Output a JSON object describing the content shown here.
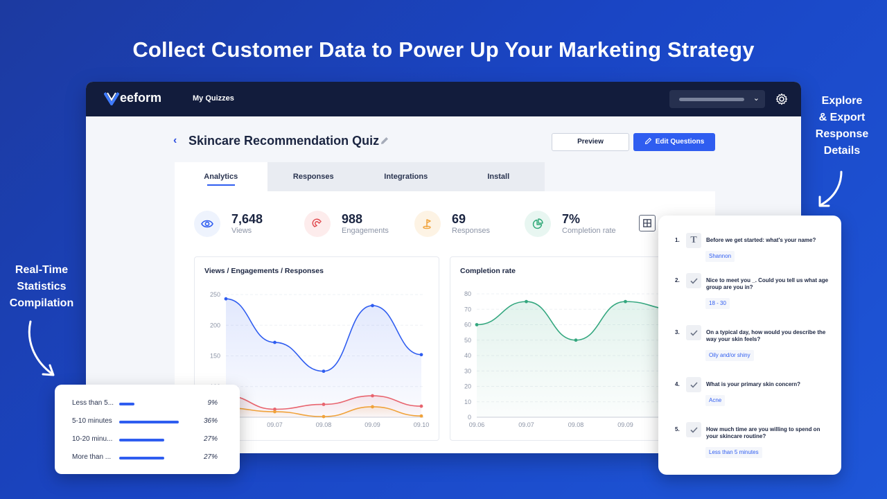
{
  "headline": "Collect Customer Data to Power Up Your Marketing Strategy",
  "side_labels": {
    "left": [
      "Real-Time",
      "Statistics",
      "Compilation"
    ],
    "right": [
      "Explore",
      "& Export",
      "Response",
      "Details"
    ]
  },
  "app": {
    "brand": "eeform",
    "nav": {
      "my_quizzes": "My Quizzes"
    },
    "quiz_title": "Skincare Recommendation Quiz",
    "buttons": {
      "preview": "Preview",
      "edit_questions": "Edit Questions"
    },
    "tabs": [
      "Analytics",
      "Responses",
      "Integrations",
      "Install"
    ],
    "stats": [
      {
        "value": "7,648",
        "label": "Views",
        "icon": "eye-icon",
        "bg": "#eef3fd",
        "color": "#2f5df0"
      },
      {
        "value": "988",
        "label": "Engagements",
        "icon": "magnet-icon",
        "bg": "#fdecec",
        "color": "#e0474c"
      },
      {
        "value": "69",
        "label": "Responses",
        "icon": "golf-flag-icon",
        "bg": "#fdf3e4",
        "color": "#f0a23a"
      },
      {
        "value": "7%",
        "label": "Completion rate",
        "icon": "pie-chart-icon",
        "bg": "#e8f6f1",
        "color": "#2fa877"
      }
    ]
  },
  "chart_data": [
    {
      "type": "area",
      "title": "Views / Engagements / Responses",
      "x": [
        "09.06",
        "09.07",
        "09.08",
        "09.09",
        "09.10"
      ],
      "x_tick_labels": [
        "09.07",
        "09.08",
        "09.09",
        "09.10"
      ],
      "y_ticks": [
        100,
        150,
        200,
        250
      ],
      "ylim": [
        50,
        250
      ],
      "series": [
        {
          "values": [
            243,
            172,
            125,
            232,
            152
          ],
          "color": "#2f5df0"
        },
        {
          "values": [
            85,
            63,
            71,
            85,
            68
          ],
          "color": "#e8646e"
        },
        {
          "values": [
            65,
            59,
            51,
            67,
            52
          ],
          "color": "#f0a23a"
        }
      ]
    },
    {
      "type": "area",
      "title": "Completion rate",
      "x": [
        "09.06",
        "09.07",
        "09.08",
        "09.09",
        "09.10"
      ],
      "x_tick_labels": [
        "09.06",
        "09.07",
        "09.08",
        "09.09"
      ],
      "y_ticks": [
        0,
        10,
        20,
        30,
        40,
        50,
        60,
        70,
        80
      ],
      "ylim": [
        0,
        80
      ],
      "series": [
        {
          "values": [
            60,
            75,
            50,
            75,
            70
          ],
          "color": "#34a77f"
        }
      ]
    }
  ],
  "durations": [
    {
      "label": "Less than 5...",
      "percent": "9%",
      "fraction": 0.09
    },
    {
      "label": "5-10 minutes",
      "percent": "36%",
      "fraction": 0.36
    },
    {
      "label": "10-20 minu...",
      "percent": "27%",
      "fraction": 0.27
    },
    {
      "label": "More than ...",
      "percent": "27%",
      "fraction": 0.27
    }
  ],
  "responses": [
    {
      "num": "1.",
      "question": "Before we get started: what's your name?",
      "answer": "Shannon",
      "icon": "text-icon"
    },
    {
      "num": "2.",
      "question": "Nice to meet you _. Could you tell us what age group are you in?",
      "answer": "18 - 30",
      "icon": "check-icon"
    },
    {
      "num": "3.",
      "question": "On a typical day, how would you describe the way your skin feels?",
      "answer": "Oily and/or shiny",
      "icon": "check-icon"
    },
    {
      "num": "4.",
      "question": "What is your primary skin concern?",
      "answer": "Acne",
      "icon": "check-icon"
    },
    {
      "num": "5.",
      "question": "How much time are you willing to spend on your skincare routine?",
      "answer": "Less than 5 minutes",
      "icon": "check-icon"
    }
  ]
}
